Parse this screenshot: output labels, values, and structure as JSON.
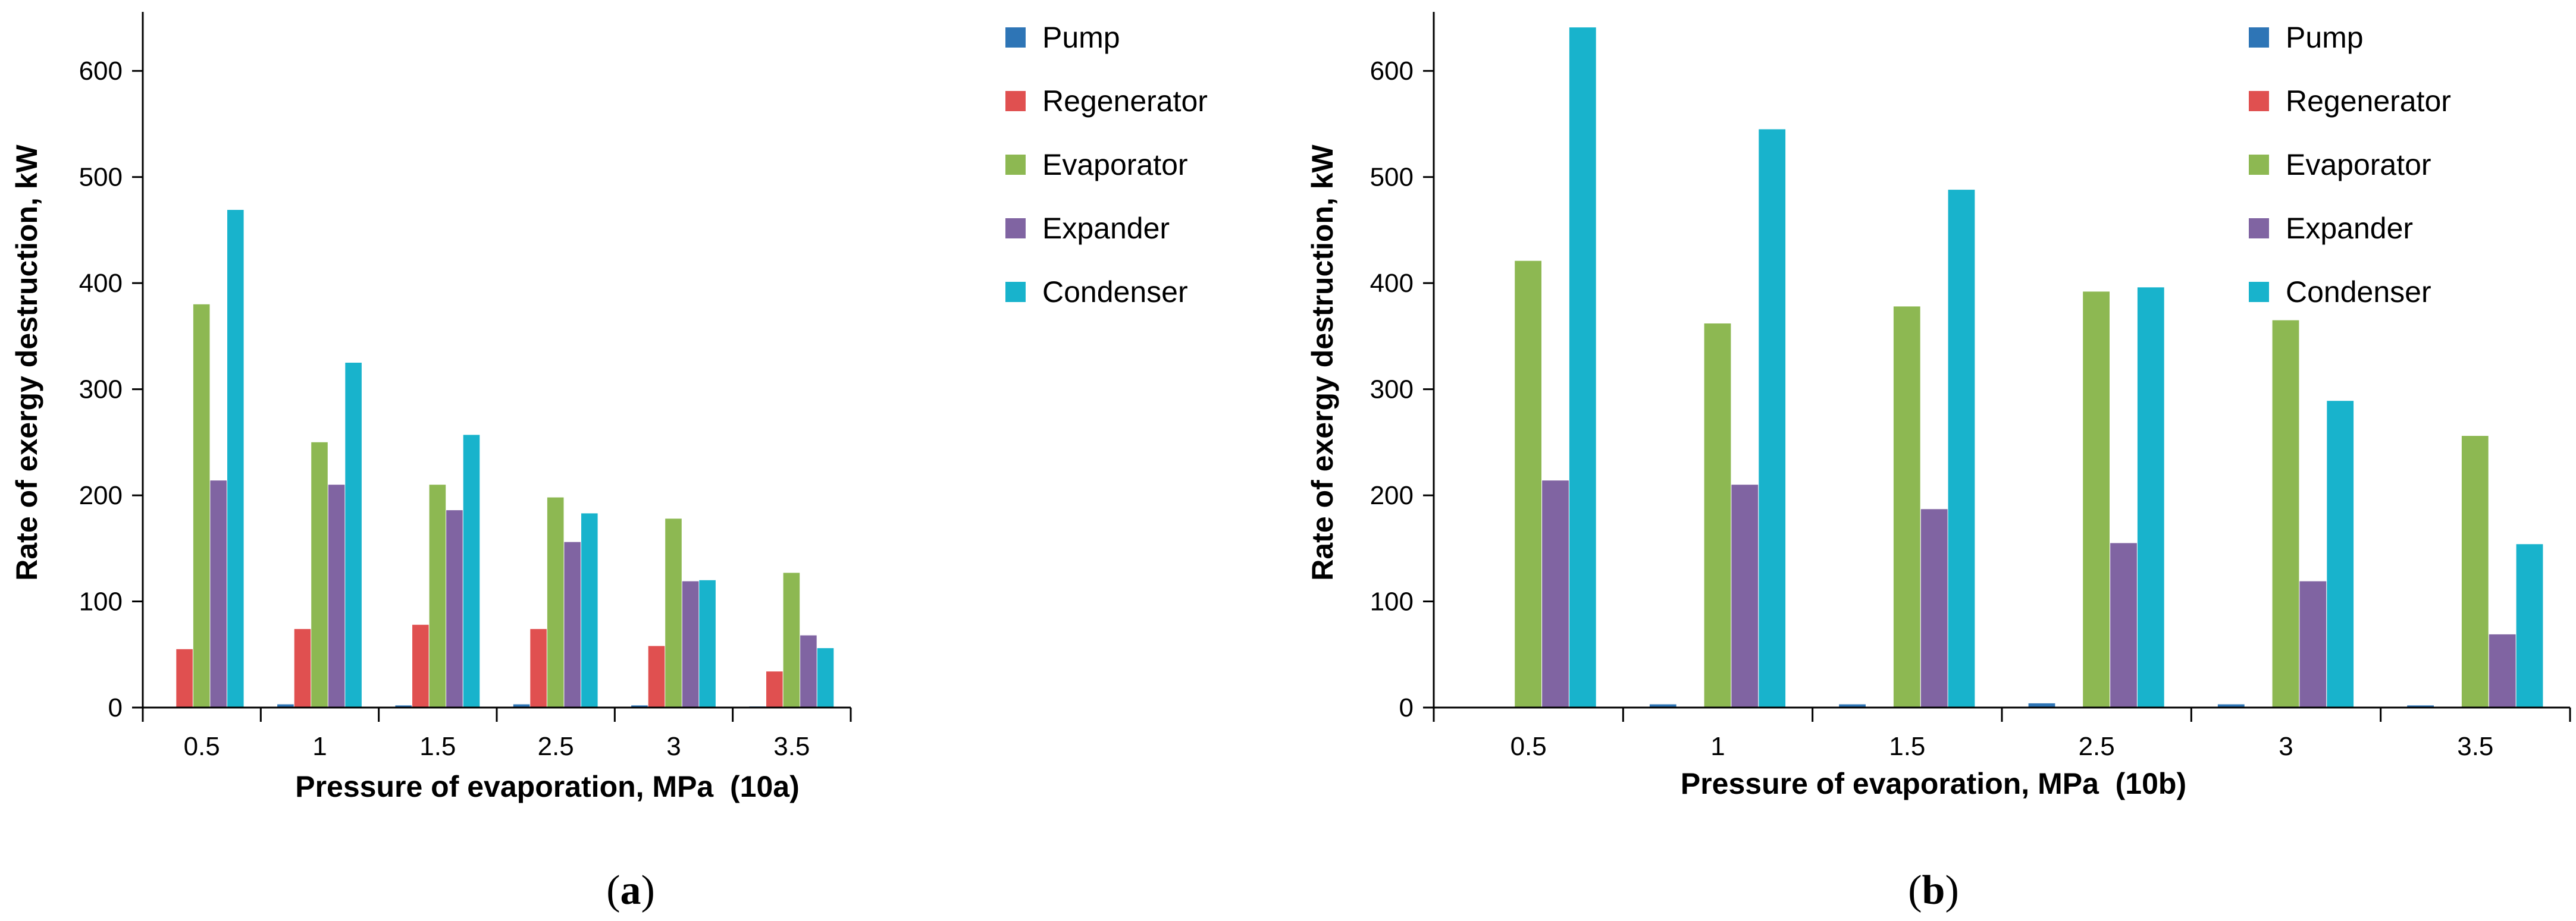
{
  "series_colors": {
    "Pump": "#2E75B6",
    "Regenerator": "#E05050",
    "Evaporator": "#8DB852",
    "Expander": "#8064A2",
    "Condenser": "#18B3CC"
  },
  "axis_color": "#000000",
  "chart_data": [
    {
      "type": "bar",
      "id": "a",
      "panel_label": {
        "open": "(",
        "letter": "a",
        "close": ")"
      },
      "xlabel": "Pressure of evaporation, MPa  (10a)",
      "ylabel": "Rate of exergy destruction, kW",
      "categories": [
        "0.5",
        "1",
        "1.5",
        "2.5",
        "3",
        "3.5"
      ],
      "ylim": [
        0,
        650
      ],
      "yticks": [
        0,
        100,
        200,
        300,
        400,
        500,
        600
      ],
      "legend_position": "top-right",
      "series": [
        {
          "name": "Pump",
          "values": [
            0,
            3,
            2,
            3,
            2,
            1
          ]
        },
        {
          "name": "Regenerator",
          "values": [
            55,
            74,
            78,
            74,
            58,
            34
          ]
        },
        {
          "name": "Evaporator",
          "values": [
            380,
            250,
            210,
            198,
            178,
            127
          ]
        },
        {
          "name": "Expander",
          "values": [
            214,
            210,
            186,
            156,
            119,
            68
          ]
        },
        {
          "name": "Condenser",
          "values": [
            469,
            325,
            257,
            183,
            120,
            56
          ]
        }
      ]
    },
    {
      "type": "bar",
      "id": "b",
      "panel_label": {
        "open": "(",
        "letter": "b",
        "close": ")"
      },
      "xlabel": "Pressure of evaporation, MPa  (10b)",
      "ylabel": "Rate of exergy destruction, kW",
      "categories": [
        "0.5",
        "1",
        "1.5",
        "2.5",
        "3",
        "3.5"
      ],
      "ylim": [
        0,
        650
      ],
      "yticks": [
        0,
        100,
        200,
        300,
        400,
        500,
        600
      ],
      "legend_position": "top-right",
      "series": [
        {
          "name": "Pump",
          "values": [
            0,
            3,
            3,
            4,
            3,
            2
          ]
        },
        {
          "name": "Regenerator",
          "values": [
            0,
            0,
            0,
            0,
            0,
            0
          ]
        },
        {
          "name": "Evaporator",
          "values": [
            421,
            362,
            378,
            392,
            365,
            256
          ]
        },
        {
          "name": "Expander",
          "values": [
            214,
            210,
            187,
            155,
            119,
            69
          ]
        },
        {
          "name": "Condenser",
          "values": [
            641,
            545,
            488,
            396,
            289,
            154
          ]
        }
      ]
    }
  ]
}
